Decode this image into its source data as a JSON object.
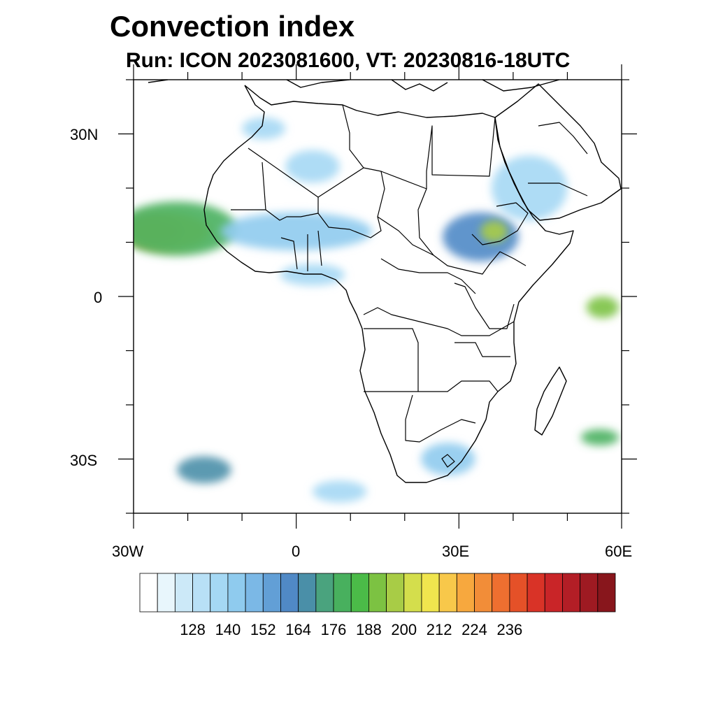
{
  "header": {
    "title": "Convection index",
    "subtitle": "Run: ICON 2023081600,  VT: 20230816-18UTC"
  },
  "axes": {
    "lat_labels": [
      "30N",
      "0",
      "30S"
    ],
    "lon_labels": [
      "30W",
      "0",
      "30E",
      "60E"
    ],
    "lat_range": [
      -40,
      40
    ],
    "lon_range": [
      -30,
      60
    ],
    "major_lat_ticks": [
      30,
      0,
      -30
    ],
    "minor_lat_ticks": [
      40,
      20,
      10,
      -10,
      -20,
      -40
    ],
    "major_lon_ticks": [
      -30,
      0,
      30,
      60
    ],
    "minor_lon_ticks": [
      -20,
      -10,
      10,
      20,
      40,
      50
    ]
  },
  "colorbar": {
    "labels": [
      "128",
      "140",
      "152",
      "164",
      "176",
      "188",
      "200",
      "212",
      "224",
      "236"
    ],
    "colors": [
      "#ffffff",
      "#e8f6fc",
      "#cce9f8",
      "#b8e0f6",
      "#a5d8f4",
      "#8fcbee",
      "#7bb8e6",
      "#629fd6",
      "#5089c6",
      "#4a8fa8",
      "#4aa37e",
      "#48b05e",
      "#4bbb48",
      "#7cc242",
      "#a8cc46",
      "#d4de4c",
      "#f0e54e",
      "#f8c84a",
      "#f7a83e",
      "#f28d38",
      "#ee6f30",
      "#e55128",
      "#d93327",
      "#c92528",
      "#b31e26",
      "#9e1a22",
      "#88161c"
    ]
  },
  "convection_regions": [
    {
      "name": "atlantic-west-africa-core",
      "lon": -26,
      "lat": 12,
      "rx": 5,
      "ry": 2.5,
      "level": 22
    },
    {
      "name": "atlantic-west-africa-mid",
      "lon": -24,
      "lat": 12,
      "rx": 8,
      "ry": 3.5,
      "level": 17
    },
    {
      "name": "atlantic-west-africa-outer",
      "lon": -22,
      "lat": 12.5,
      "rx": 11,
      "ry": 5,
      "level": 11
    },
    {
      "name": "sahel-band",
      "lon": 0,
      "lat": 12,
      "rx": 14,
      "ry": 3.5,
      "level": 5
    },
    {
      "name": "gulf-guinea",
      "lon": 3,
      "lat": 4,
      "rx": 6,
      "ry": 2,
      "level": 4
    },
    {
      "name": "ethiopia-outer",
      "lon": 34,
      "lat": 11,
      "rx": 7,
      "ry": 4.5,
      "level": 8
    },
    {
      "name": "ethiopia-core",
      "lon": 36.5,
      "lat": 12,
      "rx": 2.5,
      "ry": 2,
      "level": 14
    },
    {
      "name": "arabia",
      "lon": 43,
      "lat": 20,
      "rx": 7,
      "ry": 6,
      "level": 4
    },
    {
      "name": "algeria",
      "lon": 3,
      "lat": 24,
      "rx": 5,
      "ry": 3,
      "level": 4
    },
    {
      "name": "morocco",
      "lon": -6,
      "lat": 31,
      "rx": 4,
      "ry": 2,
      "level": 4
    },
    {
      "name": "indian-ocean-north",
      "lon": 56.5,
      "lat": -2,
      "rx": 3,
      "ry": 2,
      "level": 13
    },
    {
      "name": "indian-ocean-south",
      "lon": 56,
      "lat": -26,
      "rx": 3.5,
      "ry": 1.5,
      "level": 11
    },
    {
      "name": "south-atlantic",
      "lon": -17,
      "lat": -32,
      "rx": 5,
      "ry": 2.5,
      "level": 9
    },
    {
      "name": "south-africa",
      "lon": 28,
      "lat": -30,
      "rx": 5,
      "ry": 3,
      "level": 5
    },
    {
      "name": "south-atlantic-east",
      "lon": 8,
      "lat": -36,
      "rx": 5,
      "ry": 2,
      "level": 4
    }
  ]
}
